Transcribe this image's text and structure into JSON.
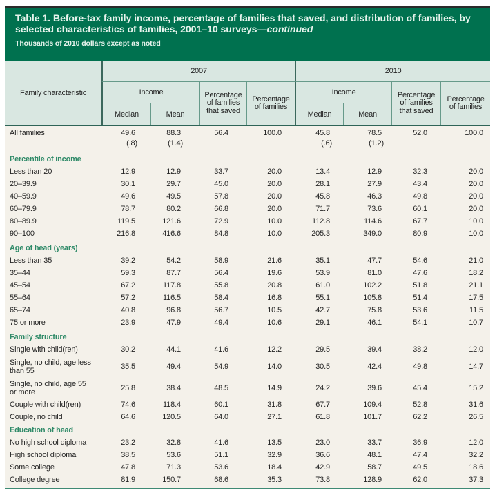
{
  "title": {
    "line1": "Table 1. Before-tax family income, percentage of families that saved, and distribution of families, by",
    "line2": "selected characteristics of families, 2001–10 surveys—",
    "line2_italic": "continued",
    "subtitle": "Thousands of 2010 dollars except as noted"
  },
  "header": {
    "family_characteristic": "Family characteristic",
    "year_left": "2007",
    "year_right": "2010",
    "income": "Income",
    "median": "Median",
    "mean": "Mean",
    "pct_saved": "Percentage\nof families\nthat saved",
    "pct_families": "Percentage\nof families"
  },
  "colors": {
    "title_bg": "#00714f",
    "title_fg": "#e6f3ec",
    "top_rule": "#2b2b2b",
    "head_bg": "#d9e7e1",
    "line_teal": "#679a8a",
    "line_dark": "#3c685c",
    "rule_dark": "#2e6457",
    "body_bg": "#f4f1ea",
    "bottom_rule": "#3e8a74",
    "section_fg": "#2f8a68"
  },
  "table": {
    "rows": [
      {
        "type": "first",
        "label": "All families",
        "values": [
          "49.6",
          "88.3",
          "56.4",
          "100.0",
          "45.8",
          "78.5",
          "52.0",
          "100.0"
        ]
      },
      {
        "type": "se",
        "label": "",
        "values": [
          "(.8)",
          "(1.4)",
          "",
          "",
          "(.6)",
          "(1.2)",
          "",
          ""
        ]
      },
      {
        "type": "section",
        "label": "Percentile of income"
      },
      {
        "type": "data",
        "label": "Less than 20",
        "values": [
          "12.9",
          "12.9",
          "33.7",
          "20.0",
          "13.4",
          "12.9",
          "32.3",
          "20.0"
        ]
      },
      {
        "type": "data",
        "label": "20–39.9",
        "values": [
          "30.1",
          "29.7",
          "45.0",
          "20.0",
          "28.1",
          "27.9",
          "43.4",
          "20.0"
        ]
      },
      {
        "type": "data",
        "label": "40–59.9",
        "values": [
          "49.6",
          "49.5",
          "57.8",
          "20.0",
          "45.8",
          "46.3",
          "49.8",
          "20.0"
        ]
      },
      {
        "type": "data",
        "label": "60–79.9",
        "values": [
          "78.7",
          "80.2",
          "66.8",
          "20.0",
          "71.7",
          "73.6",
          "60.1",
          "20.0"
        ]
      },
      {
        "type": "data",
        "label": "80–89.9",
        "values": [
          "119.5",
          "121.6",
          "72.9",
          "10.0",
          "112.8",
          "114.6",
          "67.7",
          "10.0"
        ]
      },
      {
        "type": "data",
        "label": "90–100",
        "values": [
          "216.8",
          "416.6",
          "84.8",
          "10.0",
          "205.3",
          "349.0",
          "80.9",
          "10.0"
        ]
      },
      {
        "type": "section",
        "label": "Age of head (years)"
      },
      {
        "type": "data",
        "label": "Less than 35",
        "values": [
          "39.2",
          "54.2",
          "58.9",
          "21.6",
          "35.1",
          "47.7",
          "54.6",
          "21.0"
        ]
      },
      {
        "type": "data",
        "label": "35–44",
        "values": [
          "59.3",
          "87.7",
          "56.4",
          "19.6",
          "53.9",
          "81.0",
          "47.6",
          "18.2"
        ]
      },
      {
        "type": "data",
        "label": "45–54",
        "values": [
          "67.2",
          "117.8",
          "55.8",
          "20.8",
          "61.0",
          "102.2",
          "51.8",
          "21.1"
        ]
      },
      {
        "type": "data",
        "label": "55–64",
        "values": [
          "57.2",
          "116.5",
          "58.4",
          "16.8",
          "55.1",
          "105.8",
          "51.4",
          "17.5"
        ]
      },
      {
        "type": "data",
        "label": "65–74",
        "values": [
          "40.8",
          "96.8",
          "56.7",
          "10.5",
          "42.7",
          "75.8",
          "53.6",
          "11.5"
        ]
      },
      {
        "type": "data",
        "label": "75 or more",
        "values": [
          "23.9",
          "47.9",
          "49.4",
          "10.6",
          "29.1",
          "46.1",
          "54.1",
          "10.7"
        ]
      },
      {
        "type": "section",
        "label": "Family structure"
      },
      {
        "type": "data",
        "label": "Single with child(ren)",
        "values": [
          "30.2",
          "44.1",
          "41.6",
          "12.2",
          "29.5",
          "39.4",
          "38.2",
          "12.0"
        ]
      },
      {
        "type": "twoline",
        "label": "Single, no child, age less\nthan 55",
        "values": [
          "35.5",
          "49.4",
          "54.9",
          "14.0",
          "30.5",
          "42.4",
          "49.8",
          "14.7"
        ]
      },
      {
        "type": "twoline",
        "label": "Single, no child, age 55\nor more",
        "values": [
          "25.8",
          "38.4",
          "48.5",
          "14.9",
          "24.2",
          "39.6",
          "45.4",
          "15.2"
        ]
      },
      {
        "type": "data",
        "label": "Couple with child(ren)",
        "values": [
          "74.6",
          "118.4",
          "60.1",
          "31.8",
          "67.7",
          "109.4",
          "52.8",
          "31.6"
        ]
      },
      {
        "type": "data",
        "label": "Couple, no child",
        "values": [
          "64.6",
          "120.5",
          "64.0",
          "27.1",
          "61.8",
          "101.7",
          "62.2",
          "26.5"
        ]
      },
      {
        "type": "section4",
        "label": "Education of head"
      },
      {
        "type": "data",
        "label": "No high school diploma",
        "values": [
          "23.2",
          "32.8",
          "41.6",
          "13.5",
          "23.0",
          "33.7",
          "36.9",
          "12.0"
        ]
      },
      {
        "type": "data",
        "label": "High school diploma",
        "values": [
          "38.5",
          "53.6",
          "51.1",
          "32.9",
          "36.6",
          "48.1",
          "47.4",
          "32.2"
        ]
      },
      {
        "type": "data",
        "label": "Some college",
        "values": [
          "47.8",
          "71.3",
          "53.6",
          "18.4",
          "42.9",
          "58.7",
          "49.5",
          "18.6"
        ]
      },
      {
        "type": "last",
        "label": "College degree",
        "values": [
          "81.9",
          "150.7",
          "68.6",
          "35.3",
          "73.8",
          "128.9",
          "62.0",
          "37.3"
        ]
      }
    ]
  }
}
